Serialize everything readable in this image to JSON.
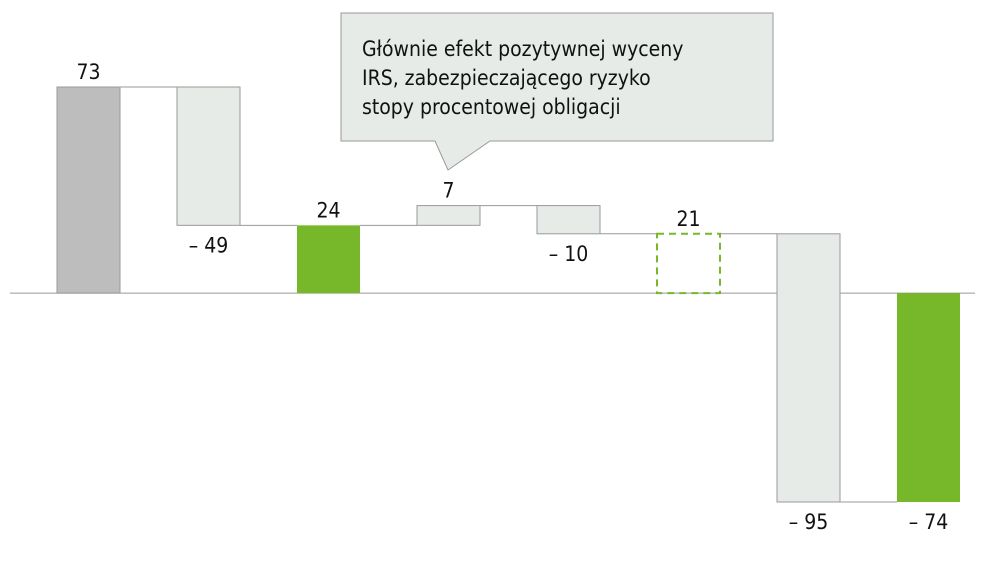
{
  "chart_data": {
    "type": "waterfall",
    "categories": [
      null,
      null,
      null,
      null,
      null,
      null,
      null,
      null
    ],
    "values": [
      73,
      -49,
      24,
      7,
      -10,
      21,
      -95,
      -74
    ],
    "value_labels": [
      "73",
      "– 49",
      "24",
      "7",
      "– 10",
      "21",
      "– 95",
      "– 74"
    ],
    "measure": [
      "absolute",
      "relative",
      "total",
      "relative",
      "relative",
      "total",
      "relative",
      "total"
    ],
    "colors": [
      "#bdbdbd",
      "#e6ebe8",
      "#76b82a",
      "#e6ebe8",
      "#e6ebe8",
      "#ffffff",
      "#e6ebe8",
      "#76b82a"
    ],
    "dashed": [
      false,
      false,
      false,
      false,
      false,
      true,
      false,
      false
    ],
    "annotation": [
      "Głównie efekt pozytywnej wyceny",
      "IRS, zabezpieczającego ryzyko",
      "stopy procentowej obligacji"
    ]
  }
}
